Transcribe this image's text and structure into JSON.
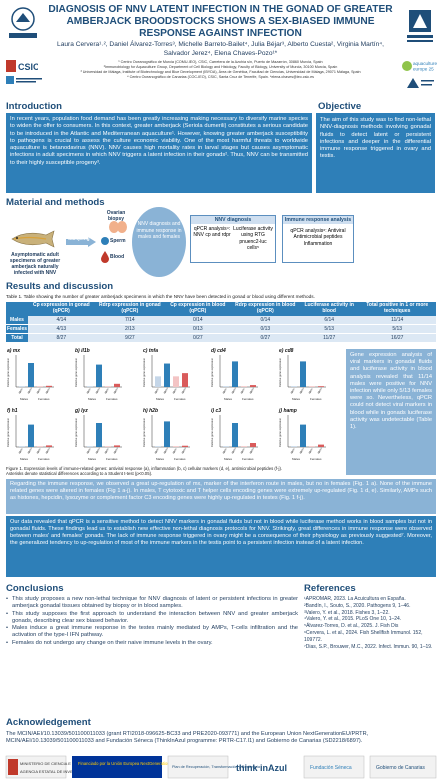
{
  "header": {
    "title": "DIAGNOSIS OF NNV LATENT INFECTION IN THE GONAD OF GREATER AMBERJACK BROODSTOCKS SHOWS A SEX-BIASED IMMUNE RESPONSE AGAINST INFECTION",
    "authors_line1": "Laura Cervera¹˒², Daniel Álvarez-Torres³, Michelle Barreto-Bailet⁴, Julia Béjar³, Alberto Cuesta², Virginia Martín⁴,",
    "authors_line2": "Salvador Jerez⁴, Elena Chaves-Pozo¹*",
    "affil_1": "¹ Centro Oceanográfico de Murcia (COMU-IEO), CSIC, Carretera de la Azohía s/n, Puerto de Mazarrón, 30860 Murcia, Spain",
    "affil_2": "²Immunobiology for Aquaculture Group, Department of Cell Biology and Histology, Faculty of Biology, University of Murcia, 30100 Murcia, Spain",
    "affil_3": "³ Universidad de Málaga, Institute of Biotechnology and Blue Development (IBYDA), Área de Genética, Facultad de Ciencias, Universidad de Málaga, 29071 Málaga, Spain",
    "affil_4": "⁴ Centro Oceanográfico de Canarias (COC-IEO), CSIC, Santa Cruz de Tenerife, Spain. *elena.chaves@ieo.csic.es",
    "logo_left_text": "UNIVERSIDAD DE MURCIA",
    "logo_right_text": "UNIVERSIDAD DE MÁLAGA",
    "csic": "CSIC",
    "icono_text": "INSTITUTO ESPAÑOL DE OCEANOGRAFÍA",
    "aqua_text": "aquaculture europe 25",
    "cabildo_text": "Cabildo de Tenerife"
  },
  "introduction": {
    "heading": "Introduction",
    "text": "In recent years, population food demand has been greatly increasing making necessary to diversify marine species to widen the offer to consumers. In this context, greater amberjack (Seriola dumerili) constitutes a serious candidate to be introduced in the Atlantic and Mediterranean aquaculture¹. However, knowing greater amberjack susceptibility to pathogens is crucial to assess the culture economic viability. One of the most harmful threats to worldwide aquaculture is betanodavirus (NNV). NNV causes high mortality rates in larval stages but causes asymptomatic infections in adult specimens in which NNV triggers a latent infection in their gonads². Thus, NNV can be transmitted to their highly susceptible progeny³."
  },
  "objective": {
    "heading": "Objective",
    "text": "The aim of this study was to find non-lethal NNV-diagnosis methods involving gonadal fluids to detect latent or persistent infections and deeper in the differential immune response triggered in ovary and testis."
  },
  "methods": {
    "heading": "Material and methods",
    "fish_caption": "Asymptomatic adult specimens of greater amberjack naturally infected with NNV",
    "sampling": "Sampling",
    "ovarian_biopsy": "Ovarian biopsy",
    "sperm": "Sperm",
    "blood": "Blood",
    "circle_text": "NNV diagnosis and immune response in males and females",
    "diag_head": "NNV diagnosis",
    "diag_1": "qPCR analysis⁴: NNV cp and rdpr",
    "diag_2": "Luciferase activity using RTG pnuenc2-luc cells⁵",
    "imm_head": "Immune response analysis",
    "imm_1": "qPCR analysis⁶: Antiviral Antimicrobial peptides Inflammation"
  },
  "results": {
    "heading": "Results and discussion",
    "table_caption": "Table 1. Table showing the number of greater amberjack specimens in which the NNV have been detected in gonad or blood using different methods.",
    "table_headers": [
      "",
      "Cp expression in gonad (qPCR)",
      "Rdrp expression in gonad (qPCR)",
      "Cp expression in blood (qPCR)",
      "Rdrp expression in blood (qPCR)",
      "Luciferase activity in blood",
      "Total positive in 1 or more techniques"
    ],
    "table_rows": [
      [
        "Males",
        "4/14",
        "7/14",
        "0/14",
        "0/14",
        "6/14",
        "11/14"
      ],
      [
        "Females",
        "4/13",
        "2/13",
        "0/13",
        "0/13",
        "5/13",
        "5/13"
      ],
      [
        "Total",
        "8/27",
        "9/27",
        "0/27",
        "0/27",
        "11/27",
        "16/27"
      ]
    ],
    "figure_caption": "Figure 1. Expression levels of immune-related genes: antiviral response (a), inflammation (b, c) cellular markers (d, e), antimicrobial peptides (f-j). Asterisks denote statistical differences according to a Student t-test (p<0.05).",
    "gene_text": "Gene expression analysis of viral markers in gonadal fluids and luciferase activity in blood analysis revealed that 11/14 males were positive for NNV infection while only 5/13 females were so. Nevertheless, qPCR could not detect viral markers in blood while in gonads luciferase activity was undetectable (Table 1).",
    "para_1": "Regarding the immune response, we observed a great up-regulation of mx, marker of the interferon route in males, but no in females (Fig. 1 a). None of the immune related genes were altered in females (Fig 1 a-j). In males, T cytotoxic and T helper cells encoding genes were extremely up-regulated (Fig. 1 d, e). Similarly, AMPs such as histones, hepcidin, lysozyme or complement factor C3 encoding genes were highly up-regulated in testes (Fig. 1 f-j).",
    "para_2": "Our data revealed that qPCR is a sensitive method to detect NNV markers in gonadal fluids but not in blood while luciferase method works in blood samples but not in gonadal fluids. These findings lead us to establish new effective non-lethal diagnosis protocols for NNV. Strikingly, great differences in immune response were observed between males' and females' gonads. The lack of immune response triggered in ovary might be a consequence of their physiology as previously suggested⁷. Moreover, the generalized tendency to up-regulation of most of the immune markers in the testis point to a persistent infection instead of a latent infection."
  },
  "chart_data": {
    "type": "bar",
    "ylabel": "Relative gene expression",
    "categories": [
      "NNV-",
      "NNV+",
      "NNV-",
      "NNV+"
    ],
    "groups": [
      "Males",
      "Females"
    ],
    "panels": [
      {
        "label": "a) mx",
        "values": [
          1,
          120,
          2,
          6
        ],
        "ymax": 160
      },
      {
        "label": "b) il1b",
        "values": [
          1,
          28,
          1,
          4
        ],
        "ymax": 40
      },
      {
        "label": "c) tnfa",
        "values": [
          1,
          2.2,
          1,
          1.3
        ],
        "ymax": 3
      },
      {
        "label": "d) cd4",
        "values": [
          1,
          40,
          1,
          3
        ],
        "ymax": 50
      },
      {
        "label": "e) cd8",
        "values": [
          1,
          40,
          0.5,
          0.6
        ],
        "ymax": 50
      },
      {
        "label": "f) h1",
        "values": [
          1,
          28,
          1,
          2
        ],
        "ymax": 40
      },
      {
        "label": "g) lyz",
        "values": [
          1,
          60,
          1,
          4
        ],
        "ymax": 80
      },
      {
        "label": "h) h2b",
        "values": [
          1,
          40,
          1,
          2
        ],
        "ymax": 50
      },
      {
        "label": "i) c3",
        "values": [
          1,
          60,
          2,
          10
        ],
        "ymax": 80
      },
      {
        "label": "j) hamp",
        "values": [
          1,
          28,
          1,
          3
        ],
        "ymax": 40
      }
    ],
    "colors": {
      "male_neg": "#c5d6e8",
      "male_pos": "#2e7fb8",
      "fem_neg": "#f3c4c4",
      "fem_pos": "#d95b5b"
    }
  },
  "conclusions": {
    "heading": "Conclusions",
    "items": [
      "This study proposes a new non-lethal technique for NNV diagnosis of latent or persistent infections in greater amberjack gonadal tissues obtained by biopsy or in blood samples.",
      "This study supposes the first approach to understand the interaction between NNV and greater amberjack gonads, describing clear sex biased behavior.",
      "Males induce a great immune response in the testes mainly mediated by AMPs, T-cells infiltration and the activation of the type-I IFN pathway.",
      "Females do not undergo any change on their naive immune levels in the ovary."
    ]
  },
  "references": {
    "heading": "References",
    "items": [
      "¹APROMAR, 2023. La Acuicultura en España.",
      "²Bandín, I., Souto, S., 2020. Pathogens 9, 1–46.",
      "³Valero, Y. et al., 2018. Fishes 3, 1–22.",
      "⁴Valero, Y. et al., 2015. PLoS One 10, 1–24.",
      "⁵Álvarez-Torres, D. et al., 2025. J. Fish Dis",
      "⁶Cervera, L. et al., 2024. Fish Shellfish Immunol. 152, 109772.",
      "⁷Dias, S.P., Brouwer, M.C., 2022. Infect. Immun. 90, 1–19."
    ]
  },
  "acknowledgement": {
    "heading": "Acknowledgement",
    "text": "The MCIN/AEI/10.13039/501100011033 (grant RTI2018-096625-BC33 and PRE2020-093771) and the European Union NextGenerationEU/PRTR, MCIN/AEI/10.13039/501100011033 and Fundación Séneca (ThinkInAzul programme: PRTR-C17.I1) and Gobierno de Canarias (SD2218/6897).",
    "funder_labels": [
      "MINISTERIO DE CIENCIA E INNOVACIÓN",
      "AGENCIA ESTATAL DE INVESTIGACIÓN",
      "Financiado por la Unión Europea NextGenerationEU",
      "Plan de Recuperación, Transformación y Resiliencia",
      "think inAzul",
      "Fundación Séneca",
      "Gobierno de Canarias"
    ]
  }
}
